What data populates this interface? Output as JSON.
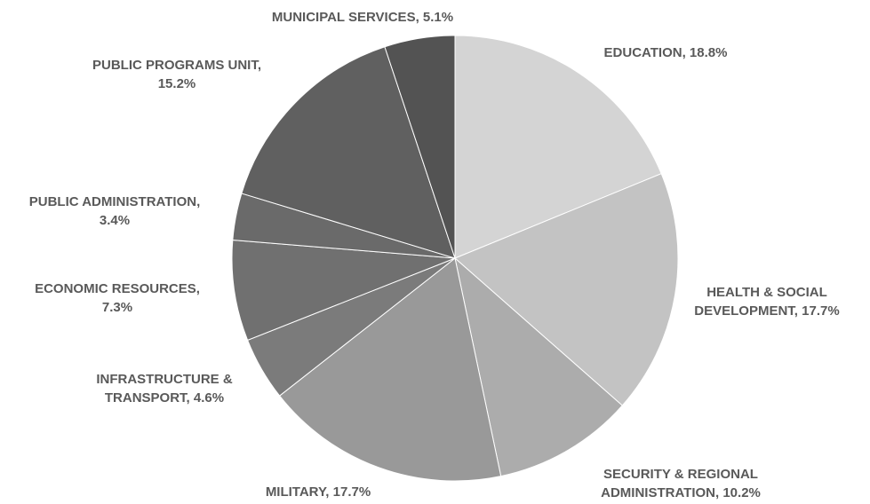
{
  "chart_data": {
    "type": "pie",
    "title": "",
    "start_angle_deg": 0,
    "direction": "clockwise",
    "legend": "none",
    "slices": [
      {
        "label": "EDUCATION, 18.8%",
        "value": 18.8,
        "color": "#d4d4d4"
      },
      {
        "label": "HEALTH & SOCIAL DEVELOPMENT, 17.7%",
        "value": 17.7,
        "color": "#c3c3c3"
      },
      {
        "label": "SECURITY & REGIONAL ADMINISTRATION, 10.2%",
        "value": 10.2,
        "color": "#acacac"
      },
      {
        "label": "MILITARY, 17.7%",
        "value": 17.7,
        "color": "#999999"
      },
      {
        "label": "INFRASTRUCTURE & TRANSPORT, 4.6%",
        "value": 4.6,
        "color": "#7b7b7b"
      },
      {
        "label": "ECONOMIC RESOURCES, 7.3%",
        "value": 7.3,
        "color": "#707070"
      },
      {
        "label": "PUBLIC ADMINISTRATION, 3.4%",
        "value": 3.4,
        "color": "#6a6a6a"
      },
      {
        "label": "PUBLIC PROGRAMS UNIT, 15.2%",
        "value": 15.2,
        "color": "#606060"
      },
      {
        "label": "MUNICIPAL SERVICES, 5.1%",
        "value": 5.1,
        "color": "#535353"
      }
    ],
    "label_lines": [
      [
        "EDUCATION, 18.8%"
      ],
      [
        "HEALTH & SOCIAL",
        "DEVELOPMENT, 17.7%"
      ],
      [
        "SECURITY & REGIONAL",
        "ADMINISTRATION, 10.2%"
      ],
      [
        "MILITARY, 17.7%"
      ],
      [
        "INFRASTRUCTURE &",
        "TRANSPORT, 4.6%"
      ],
      [
        "ECONOMIC RESOURCES,",
        "7.3%"
      ],
      [
        "PUBLIC ADMINISTRATION,",
        "3.4%"
      ],
      [
        "PUBLIC PROGRAMS UNIT,",
        "15.2%"
      ],
      [
        "MUNICIPAL SERVICES, 5.1%"
      ]
    ]
  }
}
